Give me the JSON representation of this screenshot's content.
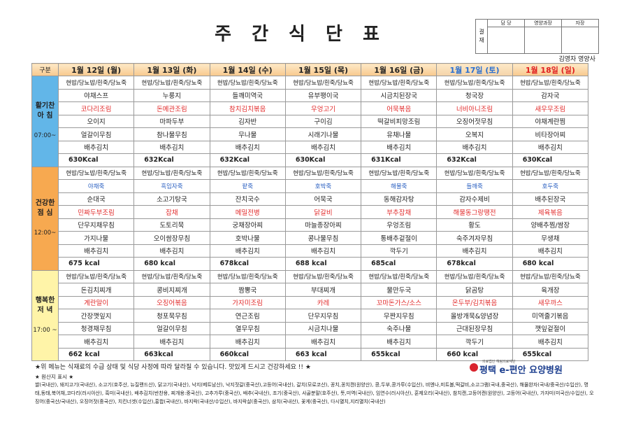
{
  "title": "주 간 식 단 표",
  "approval": {
    "label": "결 재",
    "headers": [
      "담 당",
      "영양과장",
      "자장"
    ]
  },
  "dietitian": "김영자 영양사",
  "table": {
    "corner": "구분",
    "days": [
      "1월 12일 (월)",
      "1월 13일 (화)",
      "1월 14일 (수)",
      "1월 15일 (목)",
      "1월 16일 (금)",
      "1월 17일 (토)",
      "1월 18일 (일)"
    ],
    "sections": [
      {
        "label": [
          "활기찬",
          "아 침"
        ],
        "time": "07:00~",
        "rows": [
          [
            "현밥/당뇨밥/흰죽/당뇨죽",
            "현밥/당뇨밥/흰죽/당뇨죽",
            "현밥/당뇨밥/흰죽/당뇨죽",
            "현밥/당뇨밥/흰죽/당뇨죽",
            "현밥/당뇨밥/흰죽/당뇨죽",
            "현밥/당뇨밥/흰죽/당뇨죽",
            "현밥/당뇨밥/흰죽/당뇨죽"
          ],
          [
            "야채스프",
            "누룽지",
            "들깨미역국",
            "유부팽이국",
            "시금치된장국",
            "청국장",
            "감자국"
          ],
          [
            "코다리조림",
            "돈메관조림",
            "참치김치볶음",
            "우엉고기",
            "어묵볶음",
            "너비아니조림",
            "새우무조림"
          ],
          [
            "오이지",
            "마파두부",
            "김자반",
            "구이김",
            "떡갈비피망조림",
            "오징어젓무침",
            "야채계란찜"
          ],
          [
            "얼갈이무침",
            "참나물무침",
            "무나물",
            "시래기나물",
            "유채나물",
            "오복지",
            "비타장아찌"
          ],
          [
            "배추김치",
            "배추김치",
            "배추김치",
            "배추김치",
            "배추김치",
            "배추김치",
            "배추김치"
          ],
          [
            "630Kcal",
            "632Kcal",
            "632Kcal",
            "630Kcal",
            "631Kcal",
            "632Kcal",
            "630Kcal"
          ]
        ]
      },
      {
        "label": [
          "건강한",
          "점 심"
        ],
        "time": "12:00~",
        "rows": [
          [
            "현밥/당뇨밥/흰죽/당뇨죽",
            "현밥/당뇨밥/흰죽/당뇨죽",
            "현밥/당뇨밥/흰죽/당뇨죽",
            "현밥/당뇨밥/흰죽/당뇨죽",
            "현밥/당뇨밥/흰죽/당뇨죽",
            "현밥/당뇨밥/흰죽/당뇨죽",
            "현밥/당뇨밥/흰죽/당뇨죽"
          ],
          [
            "야채죽",
            "흑임자죽",
            "팥죽",
            "호박죽",
            "해물죽",
            "들깨죽",
            "호두죽"
          ],
          [
            "순대국",
            "소고기탕국",
            "잔치국수",
            "어묵국",
            "동해감자탕",
            "감자수제비",
            "배추된장국"
          ],
          [
            "민짜두부조림",
            "잡채",
            "메밀전병",
            "닭갈비",
            "부추잡채",
            "해물동그랑땡전",
            "제육볶음"
          ],
          [
            "단무지채무침",
            "도토리묵",
            "궁채장아찌",
            "마늘종장아찌",
            "우엉조림",
            "황도",
            "양배추찜/쌈장"
          ],
          [
            "가지나물",
            "오이쌈장무침",
            "호박나물",
            "콩나물무침",
            "통배추겉절이",
            "숙주겨자무침",
            "무생채"
          ],
          [
            "배추김치",
            "배추김치",
            "배추김치",
            "배추김치",
            "깍두기",
            "배추김치",
            "배추김치"
          ],
          [
            "675 kcal",
            "680 kcal",
            "678kcal",
            "688 kcal",
            "685cal",
            "678kcal",
            "680 kcal"
          ]
        ]
      },
      {
        "label": [
          "행복한",
          "저 녁"
        ],
        "time": "17:00 ~",
        "rows": [
          [
            "현밥/당뇨밥/흰죽/당뇨죽",
            "현밥/당뇨밥/흰죽/당뇨죽",
            "현밥/당뇨밥/흰죽/당뇨죽",
            "현밥/당뇨밥/흰죽/당뇨죽",
            "현밥/당뇨밥/흰죽/당뇨죽",
            "현밥/당뇨밥/흰죽/당뇨죽",
            "현밥/당뇨밥/흰죽/당뇨죽"
          ],
          [
            "돈김치찌개",
            "콩비지찌개",
            "짬뽕국",
            "부대찌개",
            "물만두국",
            "닭곰탕",
            "육개장"
          ],
          [
            "계란말이",
            "오징어볶음",
            "가자미조림",
            "카레",
            "꼬마돈가스/소스",
            "온두부/김치볶음",
            "새우까스"
          ],
          [
            "간장깻잎지",
            "청포묵무침",
            "연근조림",
            "단무지무침",
            "무짠지무침",
            "올방개묵&양념장",
            "미역줄기볶음"
          ],
          [
            "청경채무침",
            "얼갈이무침",
            "열무무침",
            "시금치나물",
            "숙주나물",
            "근대된장무침",
            "깻잎겉절이"
          ],
          [
            "배추김치",
            "배추김치",
            "배추김치",
            "배추김치",
            "배추김치",
            "깍두기",
            "배추김치"
          ],
          [
            "662 kcal",
            "663kcal",
            "660kcal",
            "663 kcal",
            "655kcal",
            "660 kcal",
            "655kcal"
          ]
        ]
      }
    ]
  },
  "footer": {
    "notice": "★위 메뉴는 식재료의 수급 상태 및 식당 사정에 따라 달라질 수 있습니다. 맛있게 드시고 건강하세요 !! ★",
    "logo_sub": "의료법인 혜림의료재단",
    "logo": "평택 e-편안 요양병원",
    "origin_title": "★ 원산지 표시 ★",
    "origin": "쌀(국내산), 돼지고기(국내산), 소고기(호주산, 뉴질랜드산), 닭고기(국내산), 낙지(베트남산), 낙지젓갈(중국산),고등어(국내산), 갈치(모로코산), 꽁치,꽁치캔(원양산), 콩,두부,콩가루(수입산), 비엔나,미트볼,떡갈비,소고그램(국내,중국산), 해물완자(국내/중국산/수입산), 명태,동태,북어채,코다리(러시아산), 흑미(국내산), 배추김치(반찬용, 찌개용:중국산), 고추가루(중국산), 배추(국내산), 조기(중국산), 사골분말(호주산), 뜻,미역(국내산), 임연수(러시아산), 훈제오리(국내산), 참치캔,고등어캔(원양산), 고등어(국내산), 가자미(미국산/수입산), 오징어(중국산/국내산), 오징어젓(중국산), 치킨너겟(수입산),홍합(국내산), 바지락(국내산/수입산), 바지락살(중국산), 삼치(국내산), 꽃게(중국산), 다시멸치,지리멸치(국내산)"
  }
}
